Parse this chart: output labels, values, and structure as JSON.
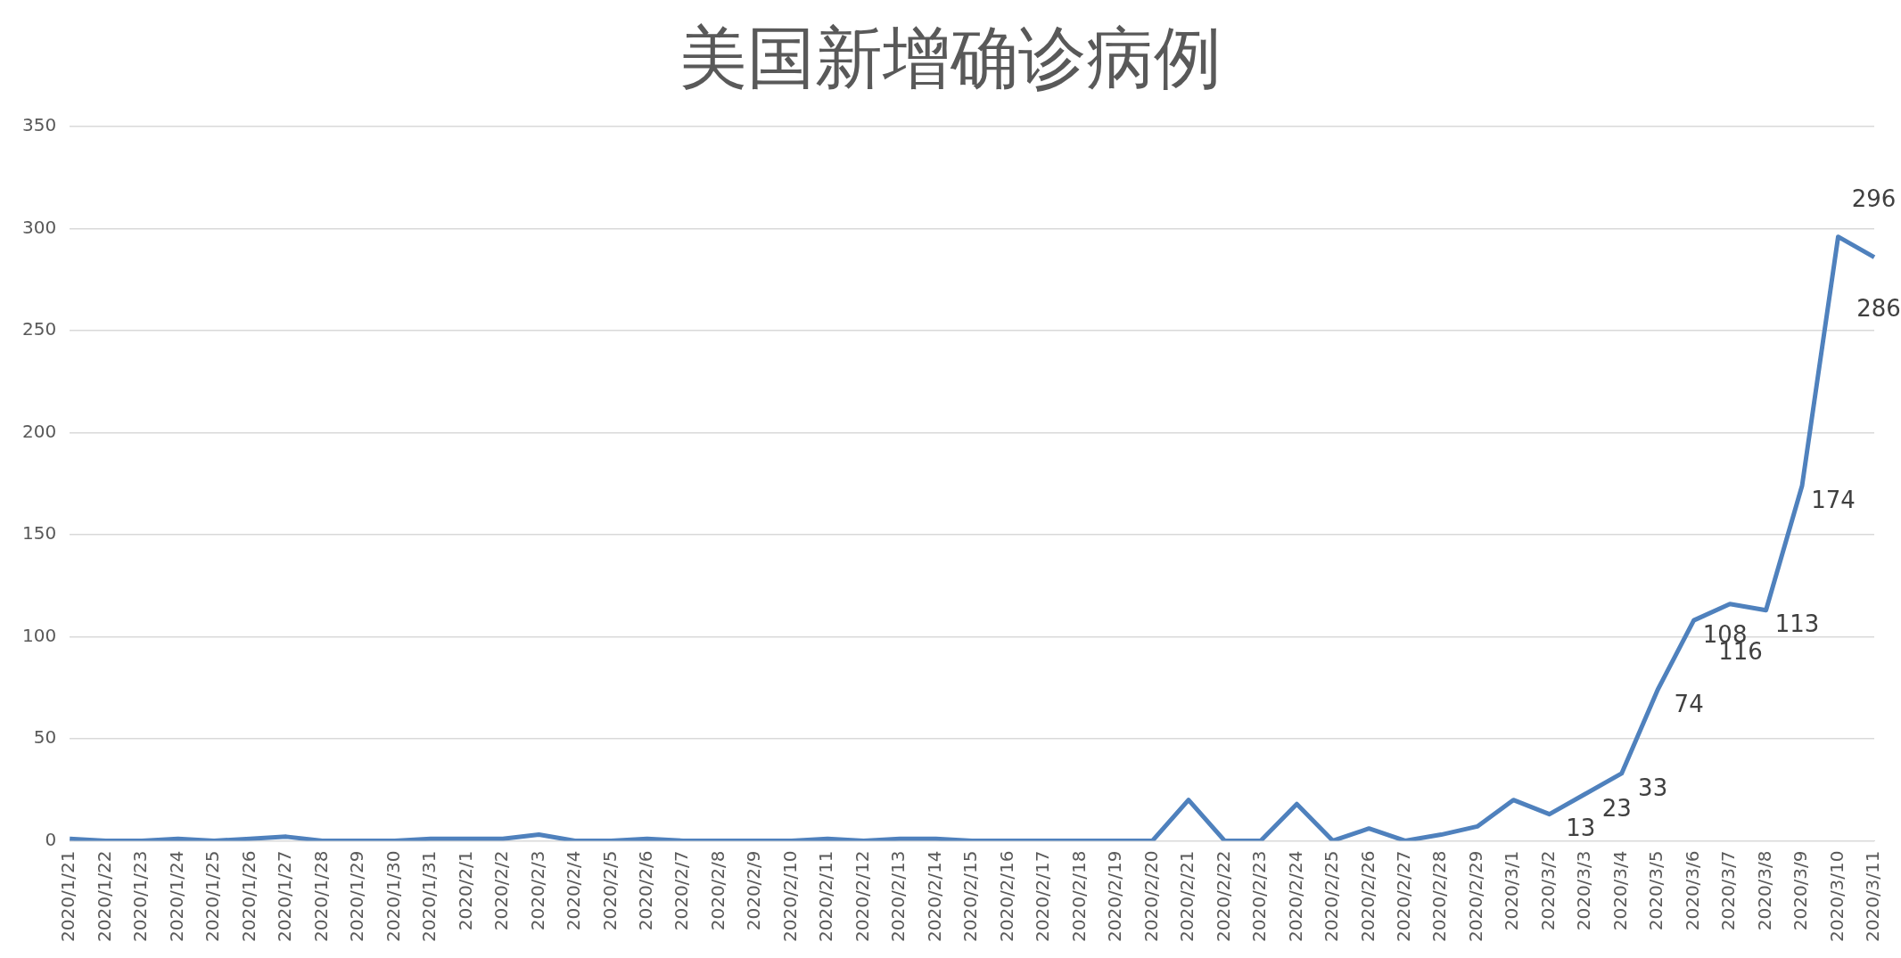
{
  "chart_data": {
    "type": "line",
    "title": "美国新增确诊病例",
    "categories": [
      "2020/1/21",
      "2020/1/22",
      "2020/1/23",
      "2020/1/24",
      "2020/1/25",
      "2020/1/26",
      "2020/1/27",
      "2020/1/28",
      "2020/1/29",
      "2020/1/30",
      "2020/1/31",
      "2020/2/1",
      "2020/2/2",
      "2020/2/3",
      "2020/2/4",
      "2020/2/5",
      "2020/2/6",
      "2020/2/7",
      "2020/2/8",
      "2020/2/9",
      "2020/2/10",
      "2020/2/11",
      "2020/2/12",
      "2020/2/13",
      "2020/2/14",
      "2020/2/15",
      "2020/2/16",
      "2020/2/17",
      "2020/2/18",
      "2020/2/19",
      "2020/2/20",
      "2020/2/21",
      "2020/2/22",
      "2020/2/23",
      "2020/2/24",
      "2020/2/25",
      "2020/2/26",
      "2020/2/27",
      "2020/2/28",
      "2020/2/29",
      "2020/3/1",
      "2020/3/2",
      "2020/3/3",
      "2020/3/4",
      "2020/3/5",
      "2020/3/6",
      "2020/3/7",
      "2020/3/8",
      "2020/3/9",
      "2020/3/10",
      "2020/3/11"
    ],
    "series": [
      {
        "color": "#4f81bd",
        "values": [
          1,
          0,
          0,
          1,
          0,
          1,
          2,
          0,
          0,
          0,
          1,
          1,
          1,
          3,
          0,
          0,
          1,
          0,
          0,
          0,
          0,
          1,
          0,
          1,
          1,
          0,
          0,
          0,
          0,
          0,
          0,
          20,
          0,
          0,
          18,
          0,
          6,
          0,
          3,
          7,
          20,
          13,
          23,
          33,
          74,
          108,
          116,
          113,
          174,
          296,
          286
        ],
        "value_labels": [
          null,
          null,
          null,
          null,
          null,
          null,
          null,
          null,
          null,
          null,
          null,
          null,
          null,
          null,
          null,
          null,
          null,
          null,
          null,
          null,
          null,
          null,
          null,
          null,
          null,
          null,
          null,
          null,
          null,
          null,
          null,
          null,
          null,
          null,
          null,
          null,
          null,
          null,
          null,
          null,
          null,
          "13",
          "23",
          "33",
          "74",
          "108",
          "116",
          "113",
          "174",
          "296",
          "286"
        ]
      }
    ],
    "ylim": [
      0,
      350
    ],
    "yticks": [
      0,
      50,
      100,
      150,
      200,
      250,
      300,
      350
    ],
    "grid": "y",
    "legend": false,
    "marker": "none",
    "line_style": "solid"
  }
}
